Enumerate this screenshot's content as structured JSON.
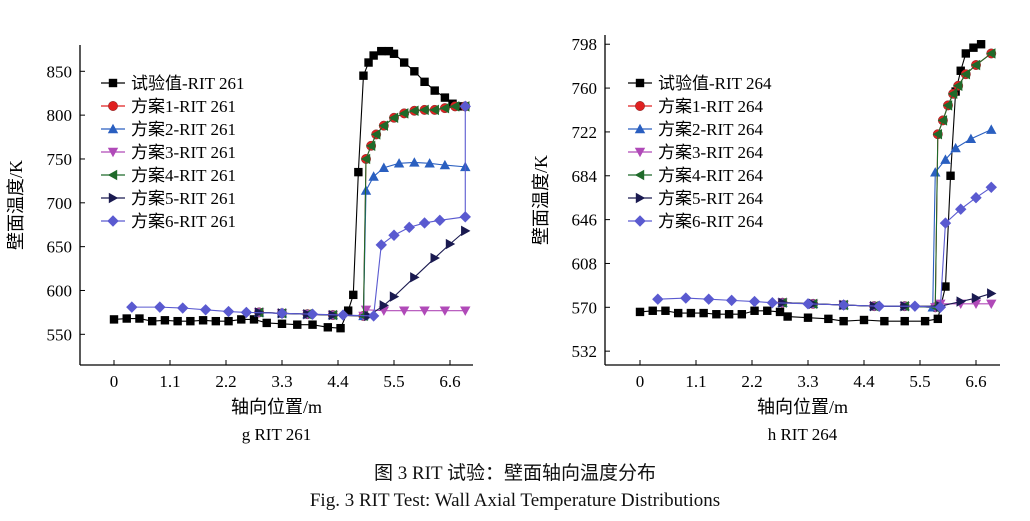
{
  "chart_data": [
    {
      "type": "line",
      "id": "g",
      "subtitle": "g  RIT 261",
      "xlabel": "轴向位置/m",
      "ylabel": "壁面温度/K",
      "xticks": [
        0,
        1.1,
        2.2,
        3.3,
        4.4,
        5.5,
        6.6
      ],
      "yticks": [
        550,
        600,
        650,
        700,
        750,
        800,
        850
      ],
      "xlim": [
        -0.6,
        7.0
      ],
      "ylim": [
        515,
        880
      ],
      "legend_position": "top-left",
      "series": [
        {
          "name": "试验值-RIT 261",
          "color": "#000000",
          "marker": "square",
          "x": [
            0,
            0.25,
            0.5,
            0.75,
            1.0,
            1.25,
            1.5,
            1.75,
            2.0,
            2.25,
            2.5,
            2.75,
            3.0,
            3.3,
            3.6,
            3.9,
            4.2,
            4.45,
            4.6,
            4.7,
            4.8,
            4.9,
            5.0,
            5.1,
            5.25,
            5.4,
            5.5,
            5.7,
            5.9,
            6.1,
            6.3,
            6.5,
            6.65,
            6.8
          ],
          "y": [
            567,
            568,
            568,
            565,
            566,
            565,
            565,
            566,
            565,
            565,
            567,
            567,
            563,
            562,
            561,
            561,
            558,
            557,
            577,
            595,
            735,
            845,
            860,
            868,
            873,
            873,
            870,
            860,
            850,
            838,
            828,
            820,
            813,
            810
          ]
        },
        {
          "name": "方案1-RIT 261",
          "color": "#e02020",
          "marker": "circle",
          "x": [
            2.85,
            3.3,
            3.8,
            4.3,
            4.9,
            4.95,
            5.05,
            5.15,
            5.3,
            5.5,
            5.7,
            5.9,
            6.1,
            6.3,
            6.5,
            6.7,
            6.9
          ],
          "y": [
            575,
            574,
            573,
            572,
            571,
            750,
            765,
            778,
            788,
            797,
            802,
            805,
            806,
            806,
            808,
            810,
            810
          ]
        },
        {
          "name": "方案2-RIT 261",
          "color": "#2a5fc0",
          "marker": "triangle-up",
          "x": [
            2.85,
            3.3,
            3.8,
            4.3,
            4.9,
            4.95,
            5.1,
            5.3,
            5.6,
            5.9,
            6.2,
            6.5,
            6.9
          ],
          "y": [
            575,
            574,
            573,
            572,
            571,
            714,
            730,
            740,
            745,
            746,
            745,
            743,
            741
          ]
        },
        {
          "name": "方案3-RIT 261",
          "color": "#b04ab8",
          "marker": "triangle-down",
          "x": [
            2.85,
            3.3,
            3.8,
            4.3,
            4.9,
            4.95,
            5.3,
            5.7,
            6.1,
            6.5,
            6.9
          ],
          "y": [
            575,
            574,
            573,
            572,
            571,
            578,
            577,
            577,
            577,
            577,
            577
          ]
        },
        {
          "name": "方案4-RIT 261",
          "color": "#1f6a2a",
          "marker": "triangle-left",
          "x": [
            2.85,
            3.3,
            3.8,
            4.3,
            4.9,
            4.95,
            5.05,
            5.15,
            5.3,
            5.5,
            5.7,
            5.9,
            6.1,
            6.3,
            6.5,
            6.7,
            6.9
          ],
          "y": [
            575,
            574,
            573,
            572,
            571,
            750,
            765,
            778,
            788,
            797,
            802,
            805,
            806,
            806,
            808,
            810,
            810
          ]
        },
        {
          "name": "方案5-RIT 261",
          "color": "#1a1a50",
          "marker": "triangle-right",
          "x": [
            2.85,
            3.3,
            3.8,
            4.3,
            5.0,
            5.3,
            5.5,
            5.9,
            6.3,
            6.6,
            6.9
          ],
          "y": [
            575,
            574,
            573,
            572,
            571,
            583,
            593,
            615,
            637,
            653,
            668
          ]
        },
        {
          "name": "方案6-RIT 261",
          "color": "#5a5ad0",
          "marker": "diamond",
          "x": [
            0.35,
            0.9,
            1.35,
            1.8,
            2.25,
            2.6,
            3.3,
            3.9,
            4.5,
            5.1,
            5.25,
            5.5,
            5.8,
            6.1,
            6.4,
            6.9,
            6.9
          ],
          "y": [
            581,
            581,
            580,
            578,
            576,
            575,
            574,
            573,
            572,
            571,
            652,
            663,
            672,
            677,
            680,
            684,
            810
          ]
        }
      ]
    },
    {
      "type": "line",
      "id": "h",
      "subtitle": "h  RIT 264",
      "xlabel": "轴向位置/m",
      "ylabel": "壁面温度/K",
      "xticks": [
        0,
        1.1,
        2.2,
        3.3,
        4.4,
        5.5,
        6.6
      ],
      "yticks": [
        532,
        570,
        608,
        646,
        684,
        722,
        760,
        798
      ],
      "xlim": [
        -0.6,
        7.0
      ],
      "ylim": [
        520,
        806
      ],
      "legend_position": "top-left",
      "series": [
        {
          "name": "试验值-RIT 264",
          "color": "#000000",
          "marker": "square",
          "x": [
            0,
            0.25,
            0.5,
            0.75,
            1.0,
            1.25,
            1.5,
            1.75,
            2.0,
            2.25,
            2.5,
            2.75,
            2.9,
            3.3,
            3.7,
            4.0,
            4.4,
            4.8,
            5.2,
            5.6,
            5.85,
            6.0,
            6.1,
            6.2,
            6.3,
            6.4,
            6.55,
            6.7
          ],
          "y": [
            566,
            567,
            567,
            565,
            565,
            565,
            564,
            564,
            564,
            567,
            567,
            566,
            562,
            561,
            560,
            558,
            559,
            558,
            558,
            558,
            560,
            588,
            684,
            757,
            775,
            790,
            795,
            798
          ]
        },
        {
          "name": "方案1-RIT 264",
          "color": "#e02020",
          "marker": "circle",
          "x": [
            2.8,
            3.4,
            4.0,
            4.6,
            5.2,
            5.8,
            5.85,
            5.95,
            6.05,
            6.15,
            6.25,
            6.4,
            6.6,
            6.9
          ],
          "y": [
            574,
            573,
            572,
            571,
            571,
            570,
            720,
            732,
            745,
            755,
            762,
            772,
            780,
            790
          ]
        },
        {
          "name": "方案2-RIT 264",
          "color": "#2a5fc0",
          "marker": "triangle-up",
          "x": [
            2.8,
            3.4,
            4.0,
            4.6,
            5.2,
            5.75,
            5.8,
            6.0,
            6.2,
            6.5,
            6.9
          ],
          "y": [
            574,
            573,
            572,
            571,
            571,
            570,
            687,
            698,
            708,
            716,
            724
          ]
        },
        {
          "name": "方案3-RIT 264",
          "color": "#b04ab8",
          "marker": "triangle-down",
          "x": [
            2.8,
            3.4,
            4.0,
            4.6,
            5.2,
            5.8,
            5.9,
            6.3,
            6.6,
            6.9
          ],
          "y": [
            574,
            573,
            572,
            571,
            571,
            570,
            573,
            573,
            573,
            573
          ]
        },
        {
          "name": "方案4-RIT 264",
          "color": "#1f6a2a",
          "marker": "triangle-left",
          "x": [
            2.8,
            3.4,
            4.0,
            4.6,
            5.2,
            5.8,
            5.85,
            5.95,
            6.05,
            6.15,
            6.25,
            6.4,
            6.6,
            6.9
          ],
          "y": [
            574,
            573,
            572,
            571,
            571,
            570,
            720,
            732,
            745,
            755,
            762,
            772,
            780,
            790
          ]
        },
        {
          "name": "方案5-RIT 264",
          "color": "#1a1a50",
          "marker": "triangle-right",
          "x": [
            2.8,
            3.4,
            4.0,
            4.6,
            5.2,
            5.9,
            6.3,
            6.6,
            6.9
          ],
          "y": [
            574,
            573,
            572,
            571,
            571,
            571,
            575,
            578,
            582
          ]
        },
        {
          "name": "方案6-RIT 264",
          "color": "#5a5ad0",
          "marker": "diamond",
          "x": [
            0.35,
            0.9,
            1.35,
            1.8,
            2.25,
            2.6,
            3.3,
            4.0,
            4.7,
            5.4,
            5.9,
            6.0,
            6.3,
            6.6,
            6.9
          ],
          "y": [
            577,
            578,
            577,
            576,
            575,
            574,
            573,
            572,
            571,
            571,
            570,
            643,
            655,
            665,
            674
          ]
        }
      ]
    }
  ],
  "caption": {
    "zh": "图 3  RIT 试验：壁面轴向温度分布",
    "en": "Fig. 3  RIT Test: Wall Axial Temperature Distributions"
  }
}
